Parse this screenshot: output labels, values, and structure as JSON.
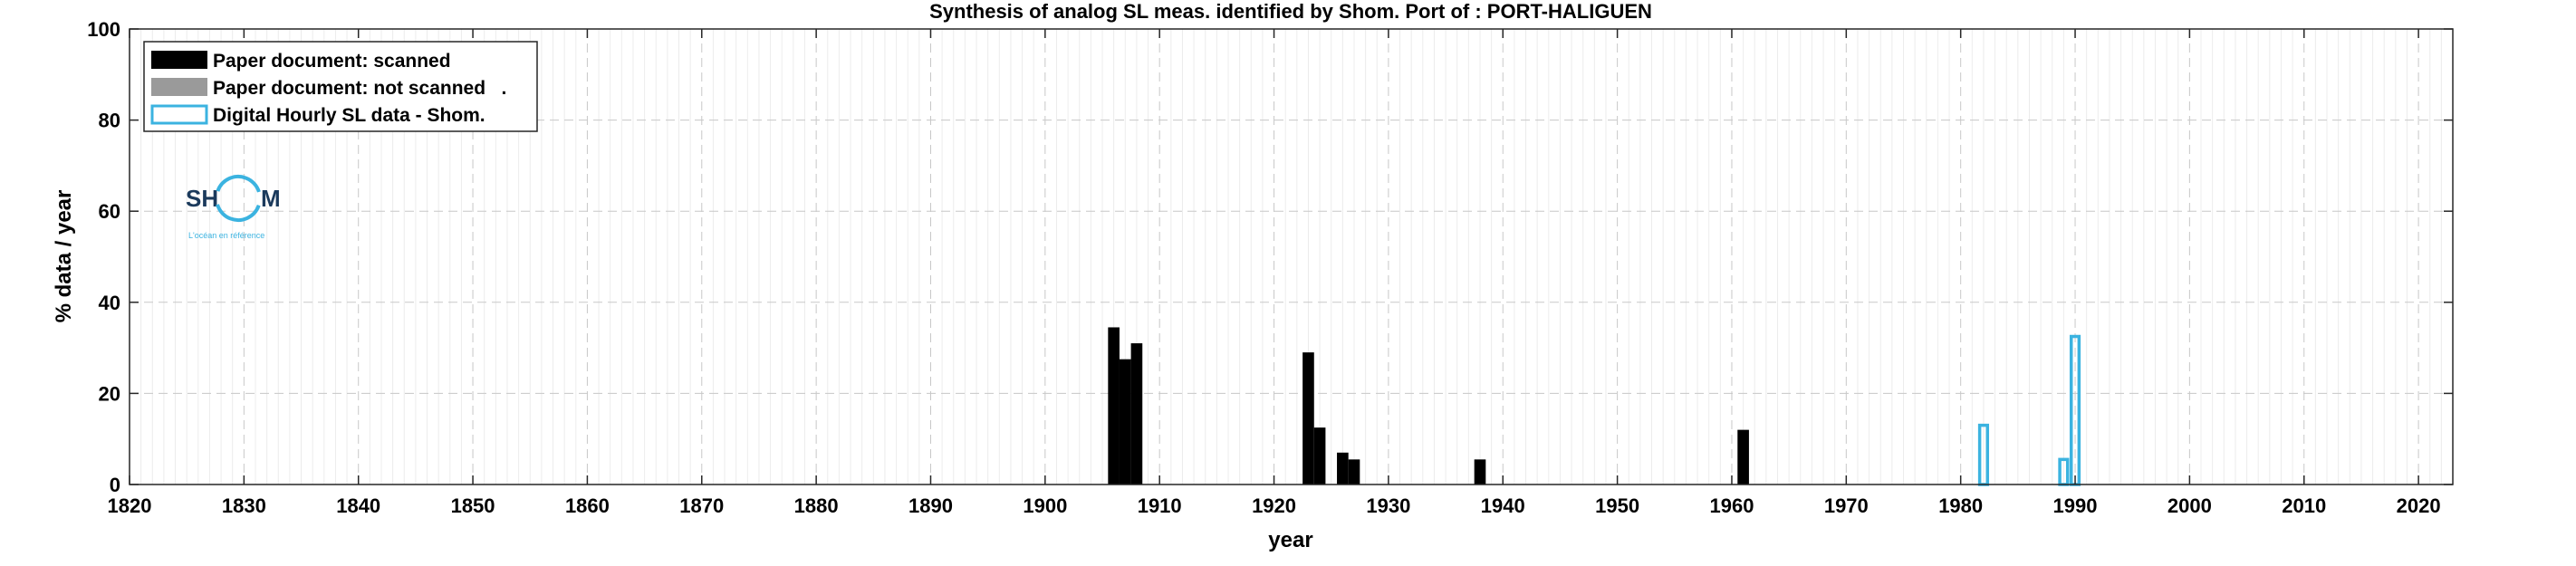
{
  "chart_data": {
    "type": "bar",
    "title": "Synthesis of analog SL meas. identified by Shom. Port of : PORT-HALIGUEN",
    "xlabel": "year",
    "ylabel": "% data / year",
    "xlim": [
      1820,
      2023
    ],
    "ylim": [
      0,
      100
    ],
    "xticks": [
      1820,
      1830,
      1840,
      1850,
      1860,
      1870,
      1880,
      1890,
      1900,
      1910,
      1920,
      1930,
      1940,
      1950,
      1960,
      1970,
      1980,
      1990,
      2000,
      2010,
      2020
    ],
    "yticks": [
      0,
      20,
      40,
      60,
      80,
      100
    ],
    "grid": true,
    "legend_position": "top-left",
    "series": [
      {
        "name": "Paper document: scanned",
        "color": "#000000",
        "style": "filled",
        "points": [
          {
            "x": 1906,
            "y": 34.5
          },
          {
            "x": 1907,
            "y": 27.5
          },
          {
            "x": 1908,
            "y": 31
          },
          {
            "x": 1923,
            "y": 29
          },
          {
            "x": 1924,
            "y": 12.5
          },
          {
            "x": 1926,
            "y": 7
          },
          {
            "x": 1927,
            "y": 5.5
          },
          {
            "x": 1938,
            "y": 5.5
          },
          {
            "x": 1961,
            "y": 12
          }
        ]
      },
      {
        "name": "Paper document: not scanned   .",
        "color": "#9a9a9a",
        "style": "filled",
        "points": []
      },
      {
        "name": "Digital Hourly SL data - Shom.",
        "color": "#3bb3e0",
        "style": "outline",
        "points": [
          {
            "x": 1982,
            "y": 13
          },
          {
            "x": 1989,
            "y": 5.5
          },
          {
            "x": 1990,
            "y": 32.5
          }
        ]
      }
    ]
  },
  "logo": {
    "text_left": "SH",
    "text_right": "M",
    "tagline": "L'océan en référence"
  }
}
